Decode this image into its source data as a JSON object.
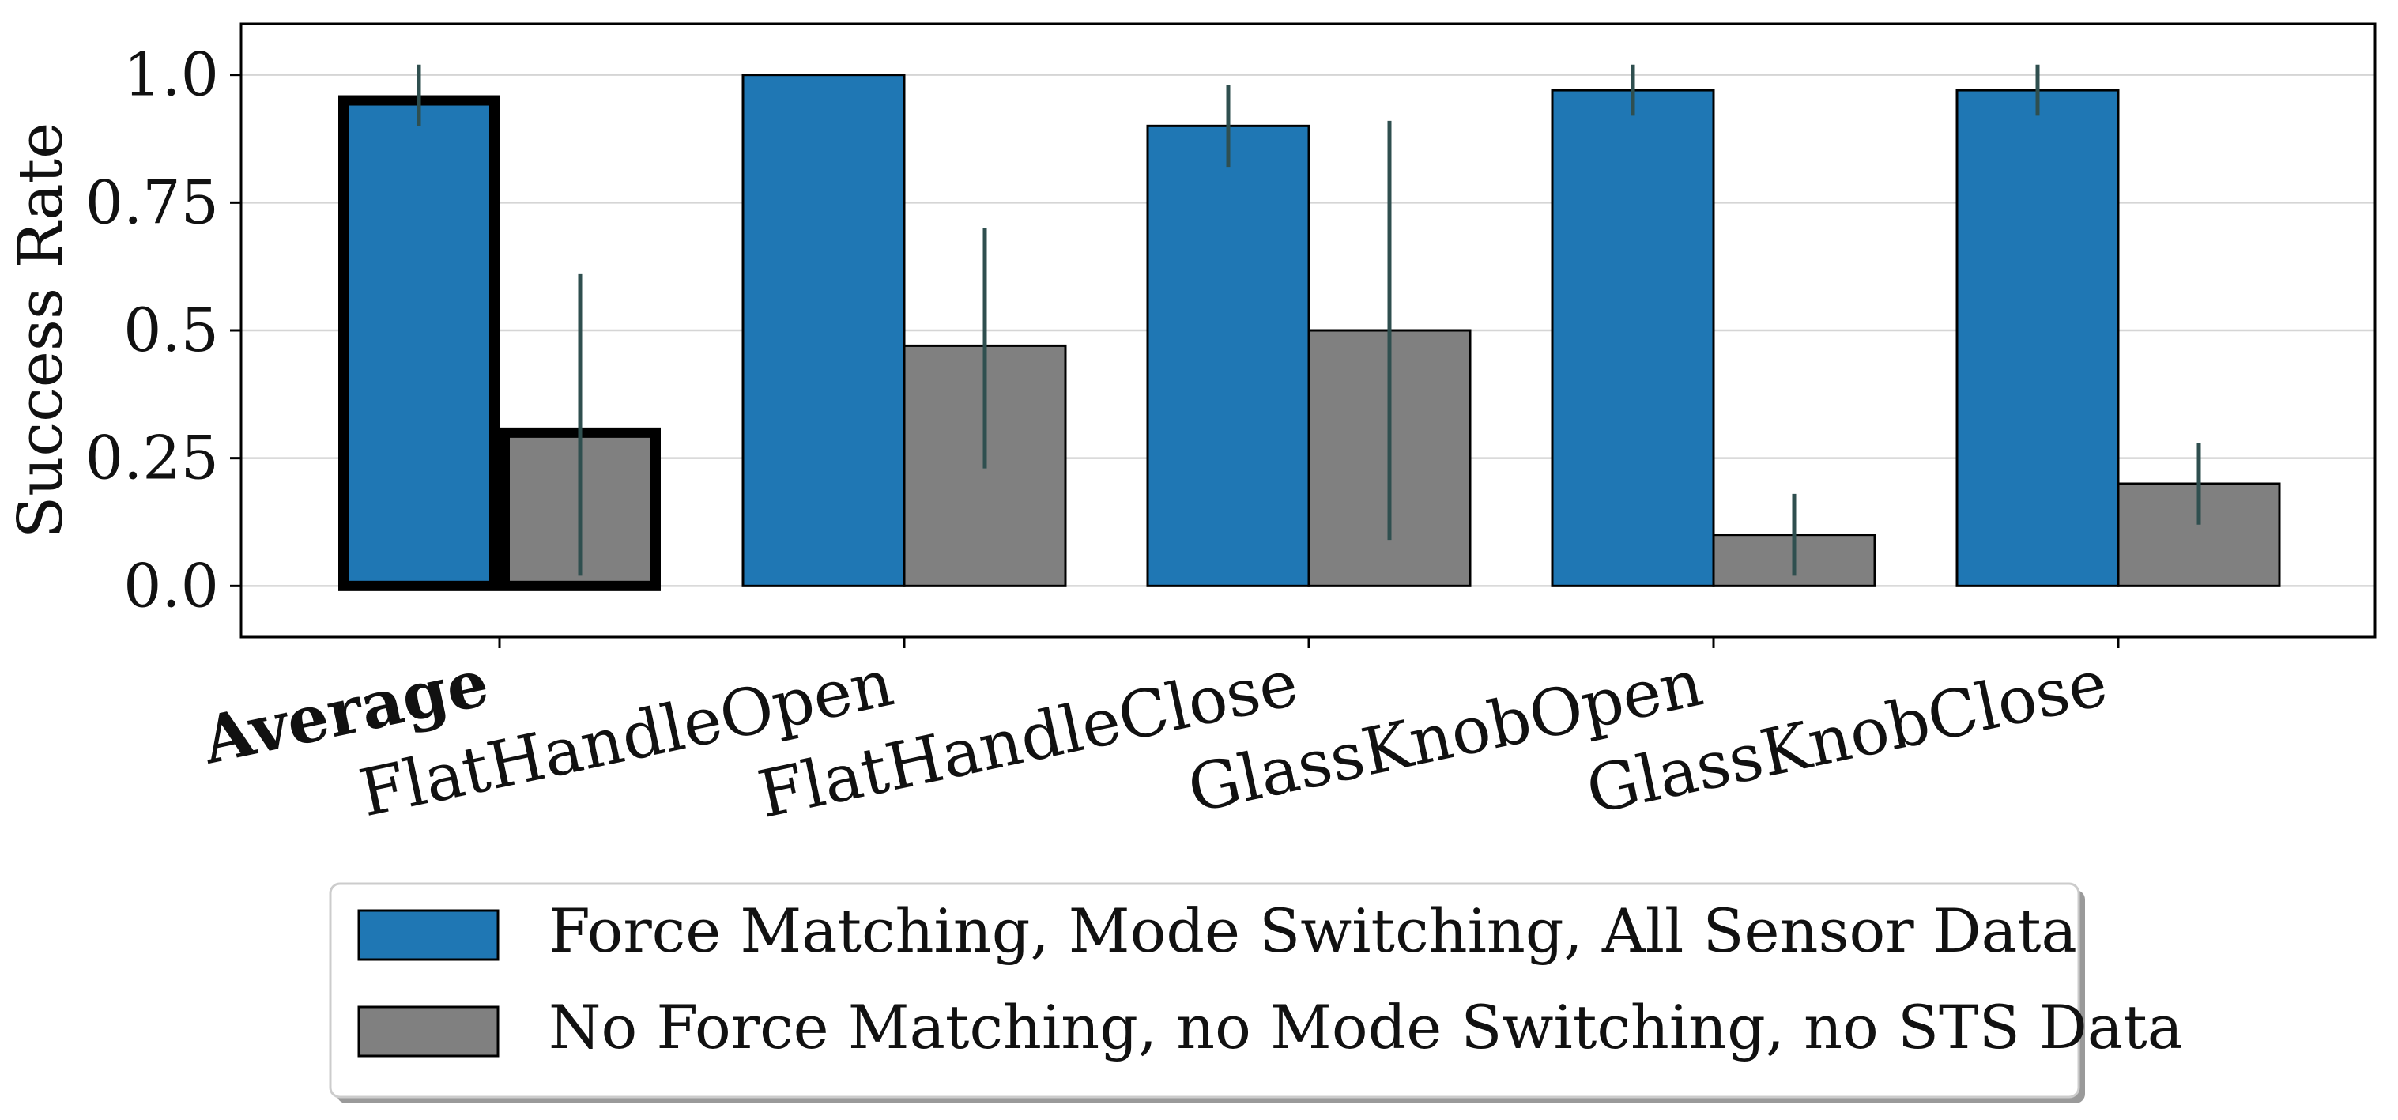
{
  "chart_data": {
    "type": "bar",
    "title": "",
    "xlabel": "",
    "ylabel": "Success Rate",
    "ylim": [
      -0.1,
      1.1
    ],
    "yticks": [
      0.0,
      0.25,
      0.5,
      0.75,
      1.0
    ],
    "ytick_labels": [
      "0.0",
      "0.25",
      "0.5",
      "0.75",
      "1.0"
    ],
    "grid": "horizontal",
    "categories": [
      "Average",
      "FlatHandleOpen",
      "FlatHandleClose",
      "GlassKnobOpen",
      "GlassKnobClose"
    ],
    "highlight_category": "Average",
    "series": [
      {
        "name": "Force Matching, Mode Switching, All Sensor Data",
        "color": "#1f77b4",
        "values": [
          0.96,
          1.0,
          0.9,
          0.97,
          0.97
        ],
        "error_low": [
          0.9,
          1.0,
          0.82,
          0.92,
          0.92
        ],
        "error_high": [
          1.02,
          1.0,
          0.98,
          1.02,
          1.02
        ]
      },
      {
        "name": "No Force Matching, no Mode Switching, no STS Data",
        "color": "#808080",
        "values": [
          0.31,
          0.47,
          0.5,
          0.1,
          0.2
        ],
        "error_low": [
          0.02,
          0.23,
          0.09,
          0.02,
          0.12
        ],
        "error_high": [
          0.61,
          0.7,
          0.91,
          0.18,
          0.28
        ]
      }
    ],
    "legend_position": "bottom-center"
  }
}
